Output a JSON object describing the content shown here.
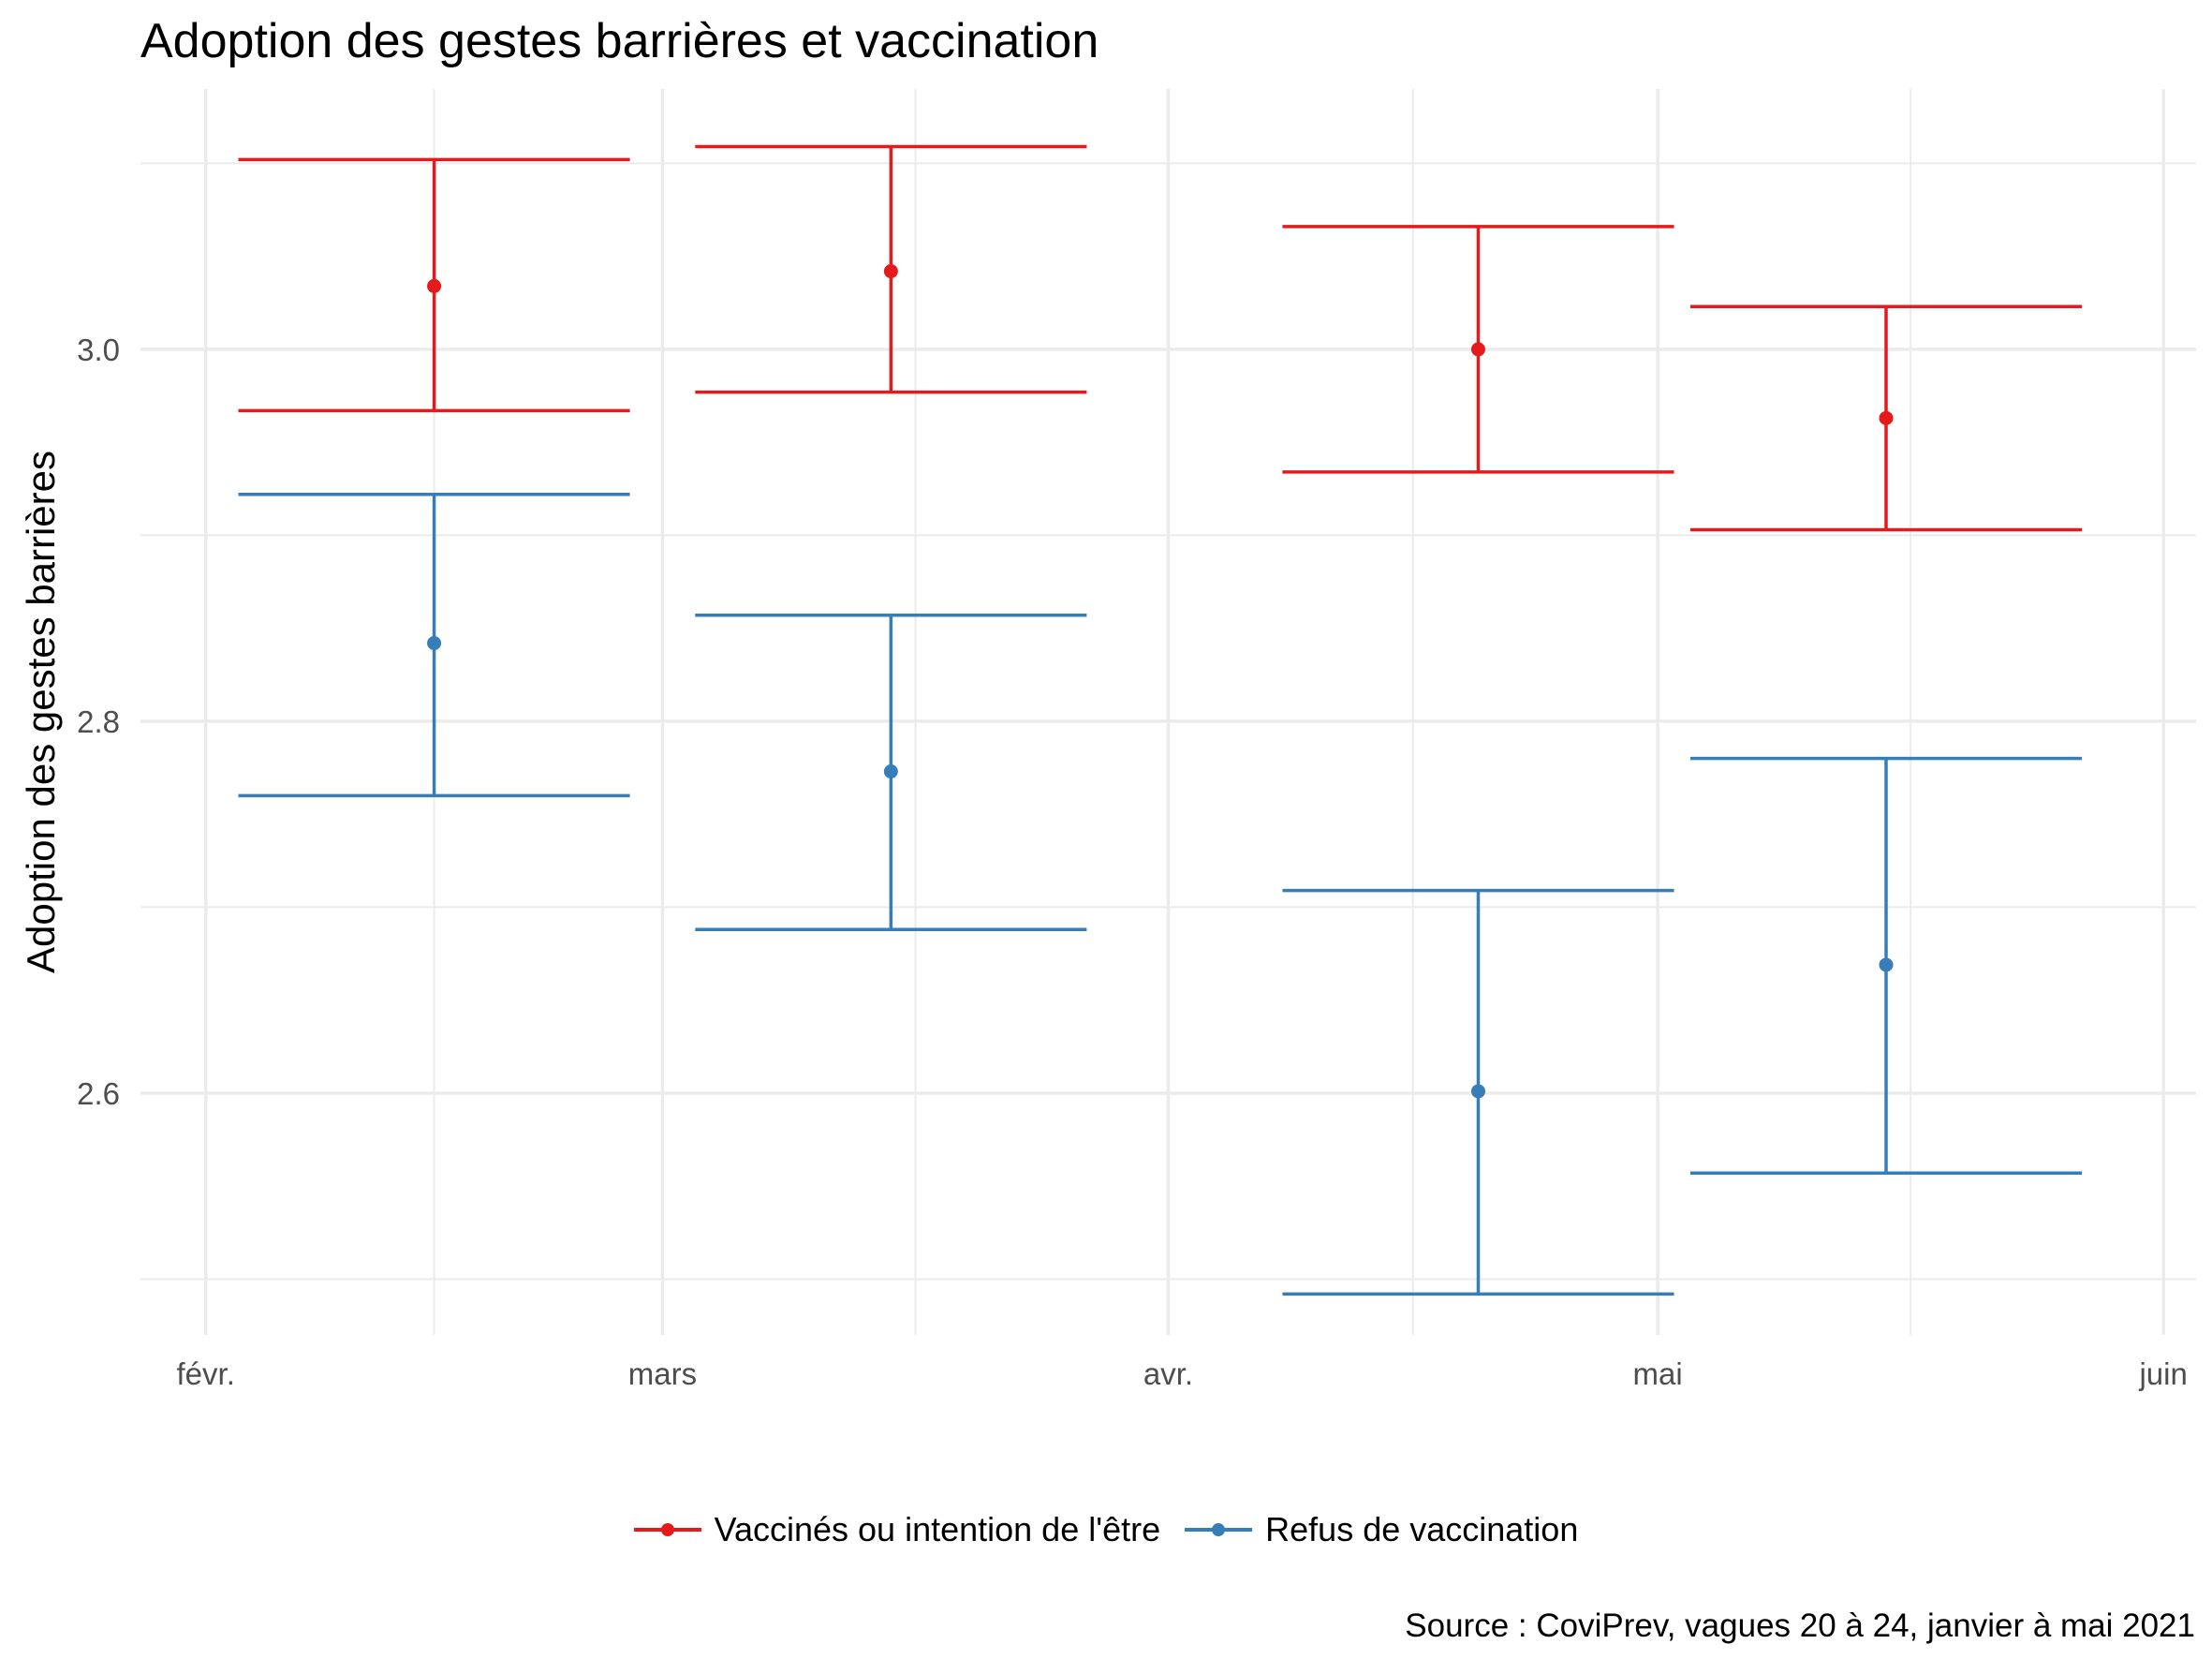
{
  "chart_data": {
    "type": "errorbar",
    "title": "Adoption des gestes barrières et vaccination",
    "xlabel": "",
    "ylabel": "Adoption des gestes barrières",
    "x_ticks": [
      "févr.",
      "mars",
      "avr.",
      "mai",
      "juin"
    ],
    "x_tick_dates": [
      "2021-02-01",
      "2021-03-01",
      "2021-04-01",
      "2021-05-01",
      "2021-06-01"
    ],
    "y_ticks": [
      2.6,
      2.8,
      3.0
    ],
    "ylim": [
      2.47,
      3.14
    ],
    "xlim": [
      "2021-01-28",
      "2021-06-03"
    ],
    "grid": true,
    "legend_position": "bottom",
    "series": [
      {
        "name": "Vaccinés ou intention de l'être",
        "color": "#e41a1c",
        "points": [
          {
            "x": "2021-02-15",
            "y": 3.034,
            "ymin": 2.967,
            "ymax": 3.102
          },
          {
            "x": "2021-03-15",
            "y": 3.042,
            "ymin": 2.977,
            "ymax": 3.109
          },
          {
            "x": "2021-04-20",
            "y": 3.0,
            "ymin": 2.934,
            "ymax": 3.066
          },
          {
            "x": "2021-05-15",
            "y": 2.963,
            "ymin": 2.903,
            "ymax": 3.023
          }
        ]
      },
      {
        "name": "Refus de vaccination",
        "color": "#377eb8",
        "points": [
          {
            "x": "2021-02-15",
            "y": 2.842,
            "ymin": 2.76,
            "ymax": 2.922
          },
          {
            "x": "2021-03-15",
            "y": 2.773,
            "ymin": 2.688,
            "ymax": 2.857
          },
          {
            "x": "2021-04-20",
            "y": 2.601,
            "ymin": 2.492,
            "ymax": 2.709
          },
          {
            "x": "2021-05-15",
            "y": 2.669,
            "ymin": 2.557,
            "ymax": 2.78
          }
        ]
      }
    ]
  },
  "source": "Source : CoviPrev, vagues 20 à 24, janvier à mai 2021"
}
